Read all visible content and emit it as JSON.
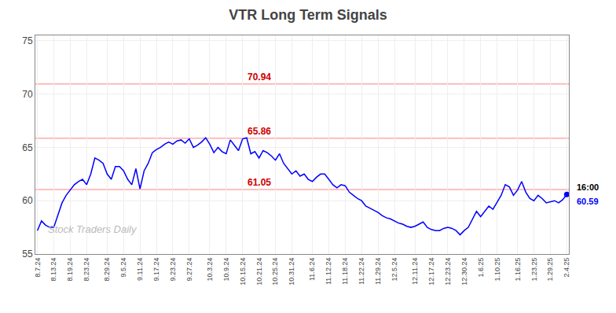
{
  "chart_data": {
    "type": "line",
    "title": "VTR Long Term Signals",
    "color": "blue",
    "grid": true,
    "categories": [
      "8.7.24",
      null,
      null,
      null,
      "8.13.24",
      null,
      null,
      null,
      "8.19.24",
      null,
      null,
      null,
      "8.23.24",
      null,
      null,
      null,
      null,
      "8.29.24",
      null,
      null,
      null,
      "9.5.24",
      null,
      null,
      null,
      "9.11.24",
      null,
      null,
      null,
      "9.17.24",
      null,
      null,
      null,
      "9.23.24",
      null,
      null,
      null,
      "9.27.24",
      null,
      null,
      null,
      null,
      "10.3.24",
      null,
      null,
      null,
      "10.9.24",
      null,
      null,
      null,
      "10.15.24",
      null,
      null,
      null,
      "10.21.24",
      null,
      null,
      null,
      "10.25.24",
      null,
      null,
      null,
      "10.31.24",
      null,
      null,
      null,
      null,
      "11.6.24",
      null,
      null,
      null,
      "11.12.24",
      null,
      null,
      null,
      "11.18.24",
      null,
      null,
      null,
      "11.22.24",
      null,
      null,
      null,
      "11.29.24",
      null,
      null,
      null,
      "12.5.24",
      null,
      null,
      null,
      null,
      "12.11.24",
      null,
      null,
      null,
      "12.17.24",
      null,
      null,
      null,
      "12.23.24",
      null,
      null,
      null,
      "12.30.24",
      null,
      null,
      null,
      "1.6.25",
      null,
      null,
      null,
      "1.10.25",
      null,
      null,
      null,
      null,
      "1.16.25",
      null,
      null,
      null,
      "1.23.25",
      null,
      null,
      null,
      "1.29.25",
      null,
      null,
      null,
      "2.4.25"
    ],
    "values": [
      57.2,
      58.1,
      57.7,
      57.5,
      57.5,
      58.6,
      59.8,
      60.5,
      61.0,
      61.5,
      61.8,
      62.0,
      61.5,
      62.5,
      64.0,
      63.8,
      63.5,
      62.5,
      62.0,
      63.2,
      63.2,
      62.8,
      62.0,
      61.5,
      63.0,
      61.1,
      62.8,
      63.5,
      64.5,
      64.8,
      65.0,
      65.3,
      65.5,
      65.3,
      65.6,
      65.7,
      65.4,
      65.8,
      65.0,
      65.2,
      65.5,
      65.9,
      65.3,
      64.5,
      65.0,
      64.6,
      64.4,
      65.7,
      65.2,
      64.7,
      65.8,
      65.9,
      64.4,
      64.6,
      64.0,
      64.7,
      64.5,
      64.2,
      63.8,
      64.4,
      63.5,
      63.0,
      62.5,
      62.8,
      62.3,
      62.5,
      62.0,
      61.8,
      62.2,
      62.5,
      62.5,
      62.0,
      61.5,
      61.2,
      61.5,
      61.4,
      60.8,
      60.5,
      60.2,
      60.0,
      59.5,
      59.3,
      59.1,
      58.9,
      58.6,
      58.4,
      58.3,
      58.1,
      57.9,
      57.8,
      57.6,
      57.5,
      57.6,
      57.8,
      58.0,
      57.5,
      57.3,
      57.2,
      57.2,
      57.4,
      57.5,
      57.4,
      57.2,
      56.8,
      57.2,
      57.5,
      58.2,
      59.0,
      58.5,
      59.0,
      59.5,
      59.2,
      59.8,
      60.5,
      61.5,
      61.3,
      60.5,
      61.0,
      61.8,
      60.8,
      60.2,
      60.0,
      60.5,
      60.2,
      59.8,
      59.9,
      60.0,
      59.8,
      60.1,
      60.59
    ],
    "ylim": [
      55,
      75.5
    ],
    "yticks": [
      55,
      60,
      65,
      70,
      75
    ],
    "hlines": [
      {
        "value": 70.94,
        "label": "70.94",
        "color": "#ffaaaa",
        "label_color": "#cc0000"
      },
      {
        "value": 65.86,
        "label": "65.86",
        "color": "#ffaaaa",
        "label_color": "#cc0000"
      },
      {
        "value": 61.05,
        "label": "61.05",
        "color": "#ffaaaa",
        "label_color": "#cc0000"
      }
    ],
    "end_label": {
      "text": "16:00",
      "color": "black"
    },
    "end_value": {
      "text": "60.59",
      "color": "blue"
    },
    "watermark": {
      "text": "Stock Traders Daily",
      "color": "#bbbbbb"
    }
  }
}
